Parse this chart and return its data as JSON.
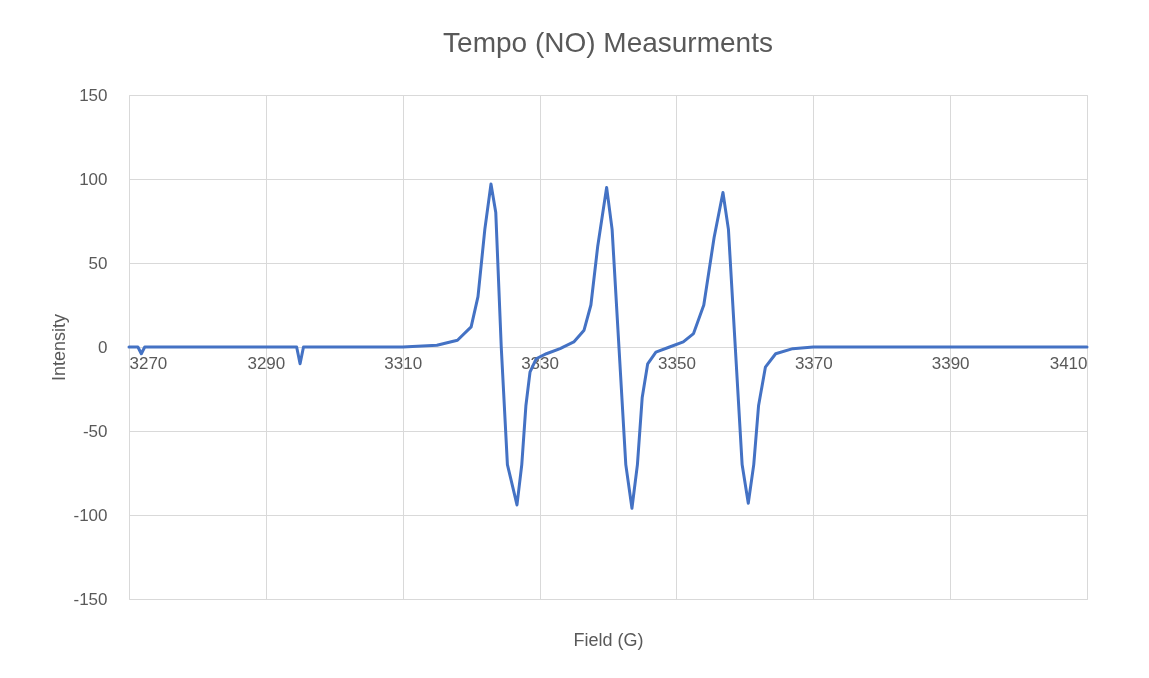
{
  "chart_data": {
    "type": "line",
    "title": "Tempo (NO) Measurments",
    "xlabel": "Field (G)",
    "ylabel": "Intensity",
    "xlim": [
      3270,
      3410
    ],
    "xticks": [
      3270,
      3290,
      3310,
      3330,
      3350,
      3370,
      3390,
      3410
    ],
    "ylim": [
      -150,
      150
    ],
    "yticks": [
      -150,
      -100,
      -50,
      0,
      50,
      100,
      150
    ],
    "grid": true,
    "marker": "none",
    "line_style": "solid",
    "series": [
      {
        "color": "#4472c4",
        "x": [
          3270,
          3271.3,
          3271.8,
          3272.3,
          3294.5,
          3295,
          3295.5,
          3310,
          3315,
          3318,
          3320,
          3321,
          3322,
          3322.9,
          3323.6,
          3324.4,
          3325.3,
          3326.7,
          3327.4,
          3328,
          3328.6,
          3329.5,
          3331,
          3333,
          3335,
          3336.5,
          3337.5,
          3338.5,
          3339.8,
          3340.6,
          3341.6,
          3342.6,
          3343.5,
          3344.3,
          3345,
          3345.8,
          3347,
          3349,
          3351,
          3352.5,
          3354,
          3355.5,
          3356.8,
          3357.6,
          3358.6,
          3359.6,
          3360.5,
          3361.3,
          3362,
          3363,
          3364.5,
          3367,
          3370,
          3410
        ],
        "values": [
          0,
          0,
          -4,
          0,
          0,
          -10,
          0,
          0,
          1,
          4,
          12,
          30,
          70,
          97,
          80,
          0,
          -70,
          -94,
          -70,
          -35,
          -15,
          -7,
          -4,
          -1,
          3,
          10,
          25,
          60,
          95,
          70,
          0,
          -70,
          -96,
          -70,
          -30,
          -10,
          -3,
          0,
          3,
          8,
          25,
          65,
          92,
          70,
          0,
          -70,
          -93,
          -70,
          -35,
          -12,
          -4,
          -1,
          0,
          0
        ]
      }
    ]
  }
}
